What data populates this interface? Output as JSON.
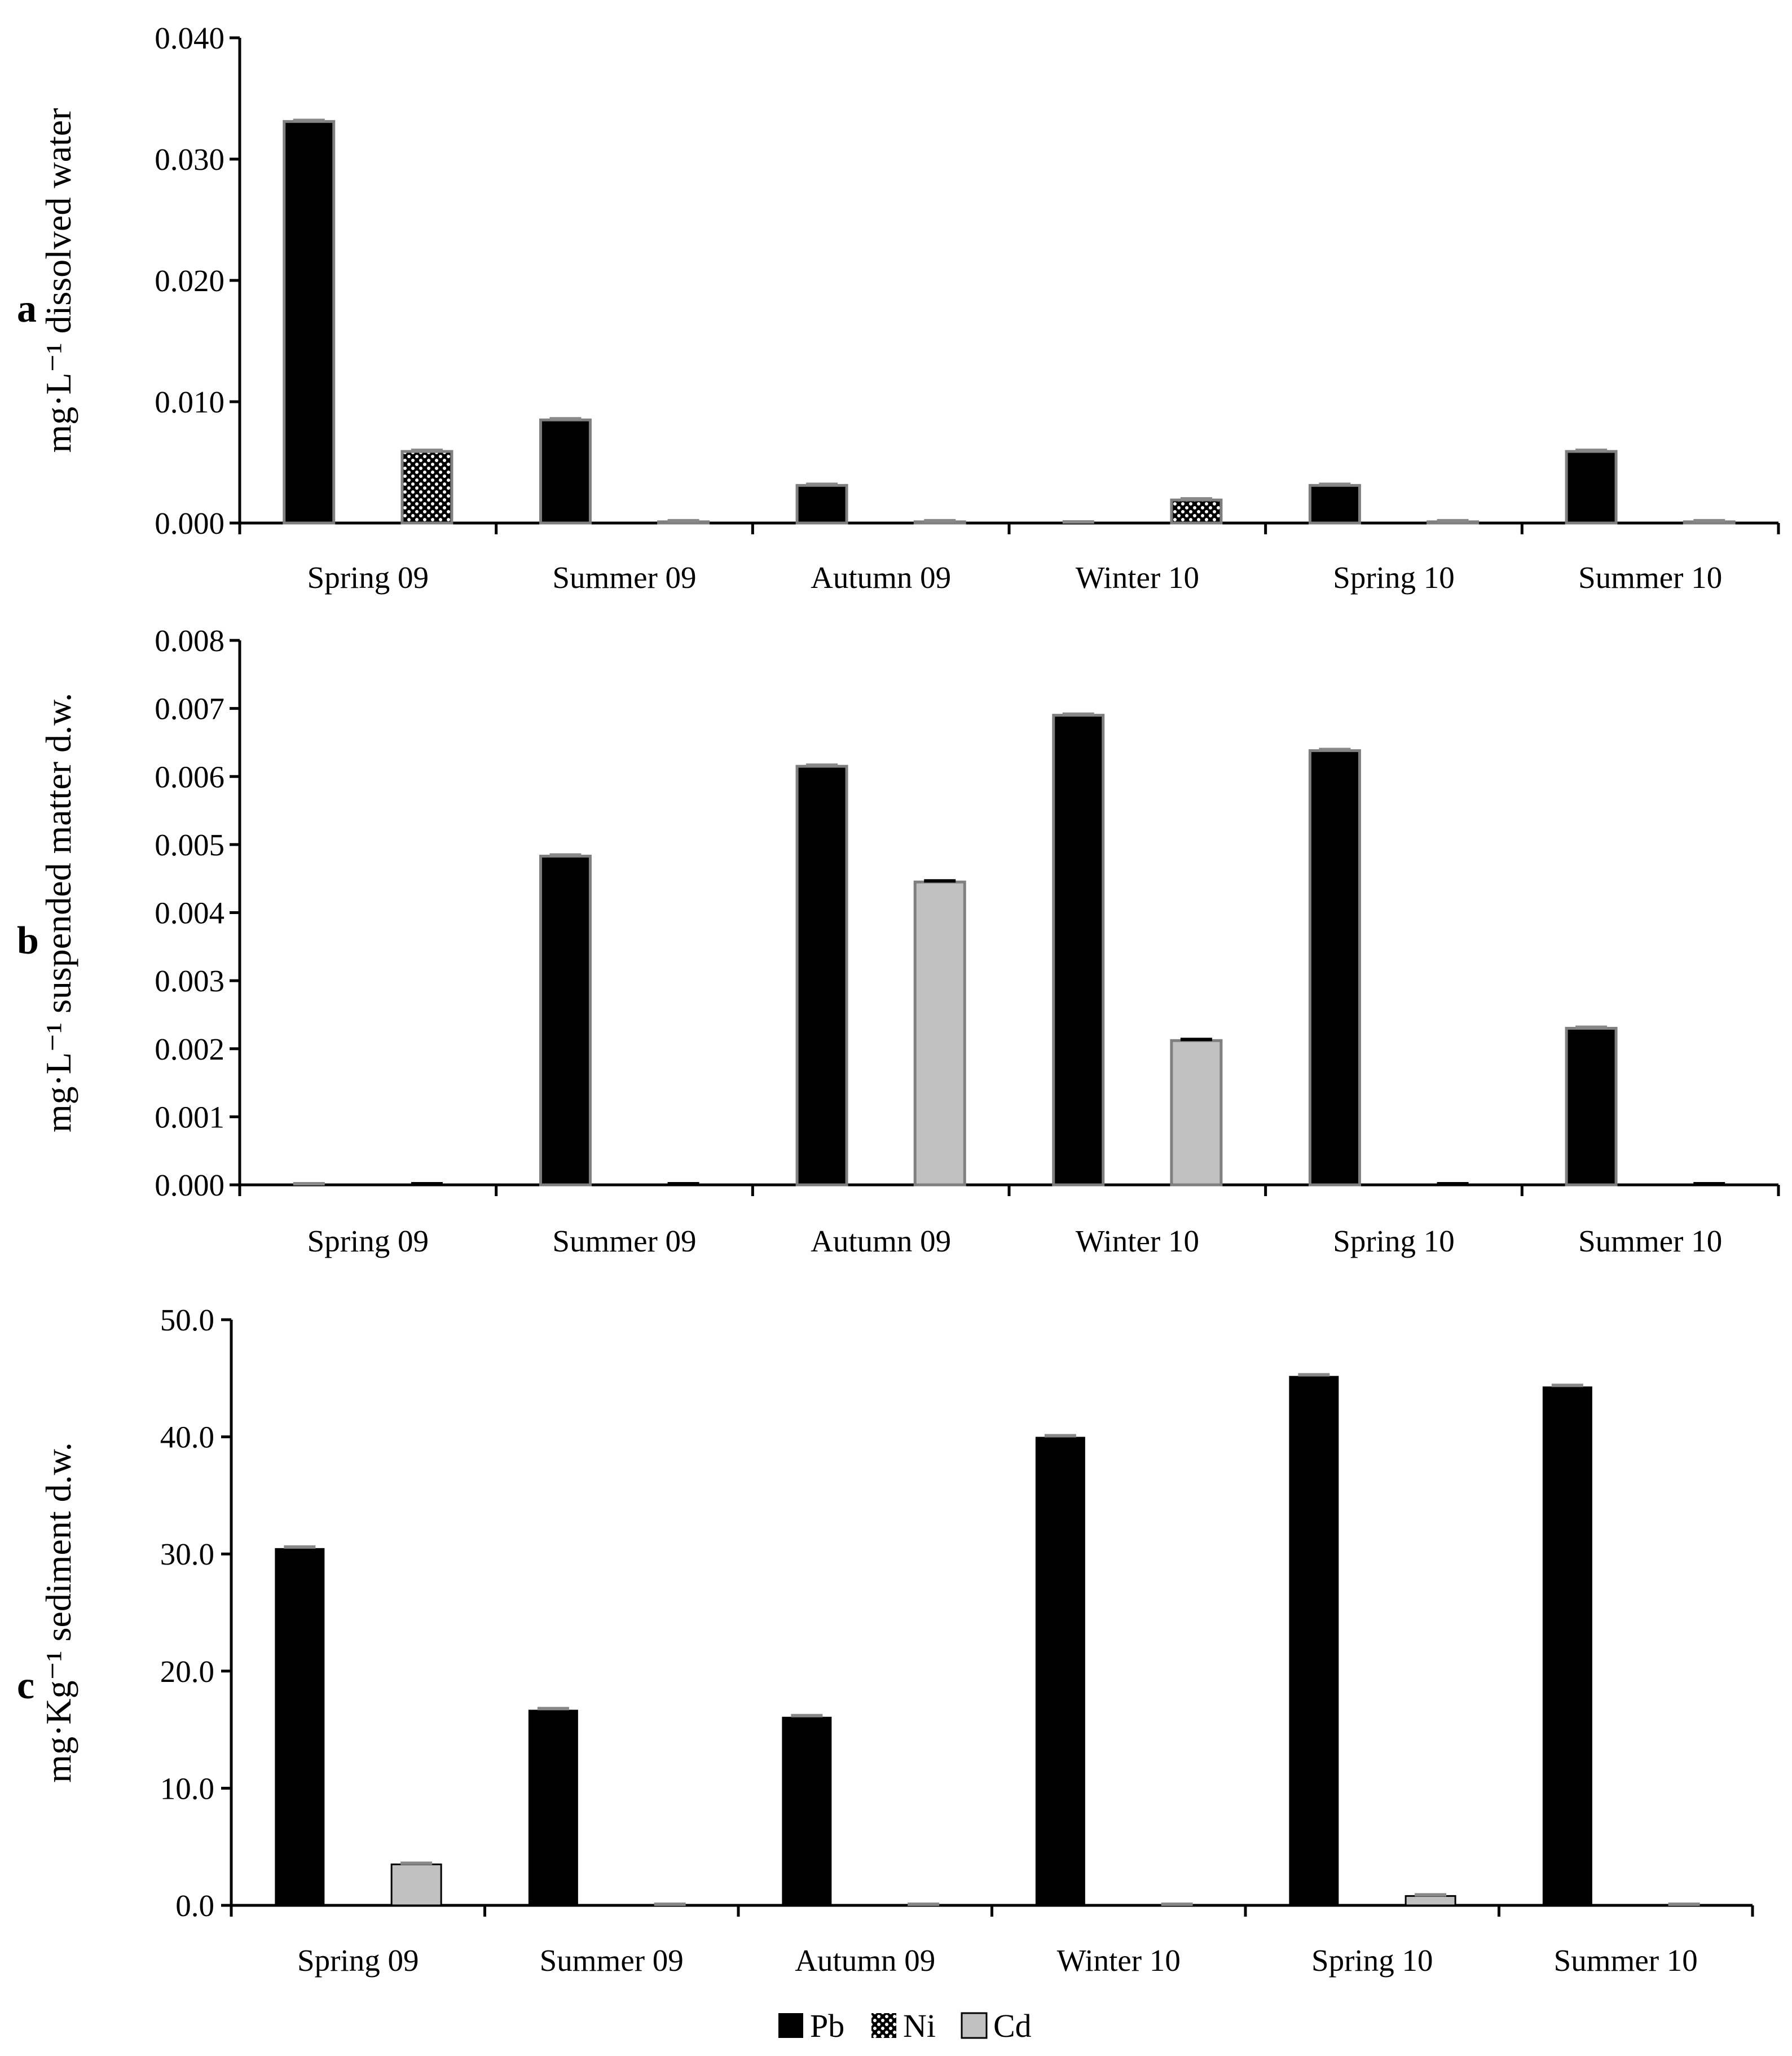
{
  "chart_data": [
    {
      "type": "bar",
      "panel_label": "a",
      "ylabel": "mg·L⁻¹ dissolved water",
      "ylim": [
        0,
        0.04
      ],
      "yticks": [
        "0.000",
        "0.010",
        "0.020",
        "0.030",
        "0.040"
      ],
      "categories": [
        "Spring 09",
        "Summer 09",
        "Autumn 09",
        "Winter 10",
        "Spring 10",
        "Summer 10"
      ],
      "series": [
        {
          "name": "Pb",
          "values": [
            0.0331,
            0.0085,
            0.0031,
            0.0,
            0.0031,
            0.0059
          ]
        },
        {
          "name": "Ni",
          "values": [
            0.0059,
            0.0001,
            0.0001,
            0.0019,
            0.0001,
            0.0001
          ]
        }
      ]
    },
    {
      "type": "bar",
      "panel_label": "b",
      "ylabel": "mg·L⁻¹ suspended matter d.w.",
      "ylim": [
        0,
        0.008
      ],
      "yticks": [
        "0.000",
        "0.001",
        "0.002",
        "0.003",
        "0.004",
        "0.005",
        "0.006",
        "0.007",
        "0.008"
      ],
      "categories": [
        "Spring 09",
        "Summer 09",
        "Autumn 09",
        "Winter 10",
        "Spring 10",
        "Summer 10"
      ],
      "series": [
        {
          "name": "Pb",
          "values": [
            0.0,
            0.00483,
            0.00615,
            0.0069,
            0.00638,
            0.0023
          ]
        },
        {
          "name": "Cd",
          "values": [
            0.0,
            0.0,
            0.00445,
            0.00212,
            0.0,
            0.0
          ]
        }
      ]
    },
    {
      "type": "bar",
      "panel_label": "c",
      "ylabel": "mg·Kg⁻¹ sediment d.w.",
      "ylim": [
        0,
        50
      ],
      "yticks": [
        "0.0",
        "10.0",
        "20.0",
        "30.0",
        "40.0",
        "50.0"
      ],
      "categories": [
        "Spring 09",
        "Summer 09",
        "Autumn 09",
        "Winter 10",
        "Spring 10",
        "Summer 10"
      ],
      "series": [
        {
          "name": "Pb",
          "values": [
            30.5,
            16.7,
            16.1,
            40.0,
            45.2,
            44.3
          ]
        },
        {
          "name": "Cd",
          "values": [
            3.5,
            0.0,
            0.0,
            0.0,
            0.8,
            0.0
          ]
        }
      ]
    }
  ],
  "legend": [
    {
      "name": "Pb",
      "color": "#000000"
    },
    {
      "name": "Ni",
      "color": "#000000"
    },
    {
      "name": "Cd",
      "color": "#c0c0c0"
    }
  ],
  "colors": {
    "pb": "#000000",
    "cd": "#c0c0c0",
    "ni_dot": "#ffffff",
    "bar_edge": "#7f7f7f"
  }
}
